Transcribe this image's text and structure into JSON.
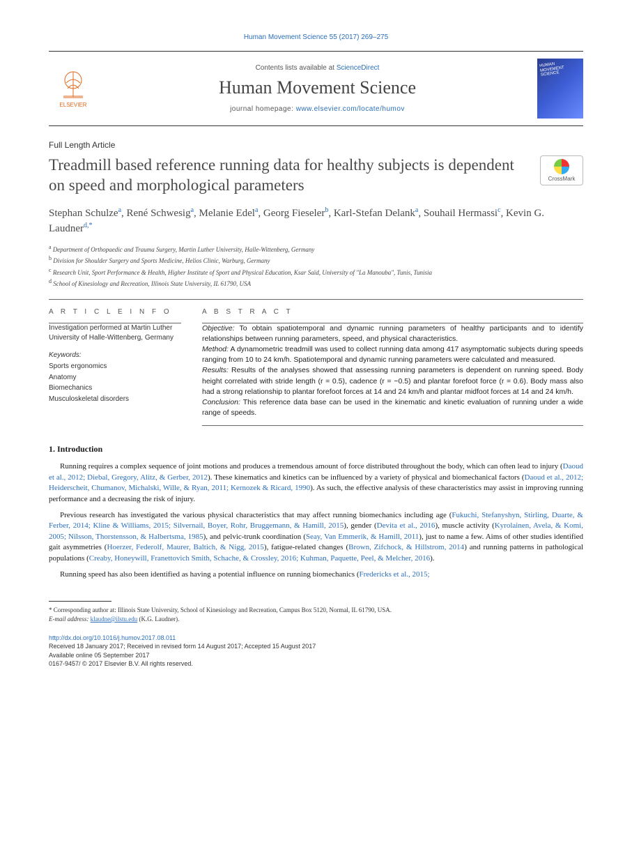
{
  "citation_header": "Human Movement Science 55 (2017) 269–275",
  "masthead": {
    "contents_prefix": "Contents lists available at ",
    "contents_link": "ScienceDirect",
    "journal_name": "Human Movement Science",
    "homepage_prefix": "journal homepage: ",
    "homepage_url": "www.elsevier.com/locate/humov",
    "publisher_logo_text": "ELSEVIER"
  },
  "article_type": "Full Length Article",
  "title": "Treadmill based reference running data for healthy subjects is dependent on speed and morphological parameters",
  "crossmark_label": "CrossMark",
  "authors_html": "Stephan Schulze<sup>a</sup>, René Schwesig<sup>a</sup>, Melanie Edel<sup>a</sup>, Georg Fieseler<sup>b</sup>, Karl-Stefan Delank<sup>a</sup>, Souhail Hermassi<sup>c</sup>, Kevin G. Laudner<sup>d,*</sup>",
  "affiliations": [
    "a Department of Orthopaedic and Trauma Surgery, Martin Luther University, Halle-Wittenberg, Germany",
    "b Division for Shoulder Surgery and Sports Medicine, Helios Clinic, Warburg, Germany",
    "c Research Unit, Sport Performance & Health, Higher Institute of Sport and Physical Education, Ksar Saïd, University of \"La Manouba\", Tunis, Tunisia",
    "d School of Kinesiology and Recreation, Illinois State University, IL 61790, USA"
  ],
  "info": {
    "heading": "A R T I C L E  I N F O",
    "institution_note": "Investigation performed at Martin Luther University of Halle-Wittenberg, Germany",
    "keywords_label": "Keywords:",
    "keywords": [
      "Sports ergonomics",
      "Anatomy",
      "Biomechanics",
      "Musculoskeletal disorders"
    ]
  },
  "abstract": {
    "heading": "A B S T R A C T",
    "segments": [
      {
        "label": "Objective:",
        "text": " To obtain spatiotemporal and dynamic running parameters of healthy participants and to identify relationships between running parameters, speed, and physical characteristics."
      },
      {
        "label": "Method:",
        "text": " A dynamometric treadmill was used to collect running data among 417 asymptomatic subjects during speeds ranging from 10 to 24 km/h. Spatiotemporal and dynamic running parameters were calculated and measured."
      },
      {
        "label": "Results:",
        "text": " Results of the analyses showed that assessing running parameters is dependent on running speed. Body height correlated with stride length (r = 0.5), cadence (r = −0.5) and plantar forefoot force (r = 0.6). Body mass also had a strong relationship to plantar forefoot forces at 14 and 24 km/h and plantar midfoot forces at 14 and 24 km/h."
      },
      {
        "label": "Conclusion:",
        "text": " This reference data base can be used in the kinematic and kinetic evaluation of running under a wide range of speeds."
      }
    ]
  },
  "section1": {
    "heading": "1. Introduction",
    "p1_a": "Running requires a complex sequence of joint motions and produces a tremendous amount of force distributed throughout the body, which can often lead to injury (",
    "p1_ref1": "Daoud et al., 2012; Diebal, Gregory, Alitz, & Gerber, 2012",
    "p1_b": "). These kinematics and kinetics can be influenced by a variety of physical and biomechanical factors (",
    "p1_ref2": "Daoud et al., 2012; Heiderscheit, Chumanov, Michalski, Wille, & Ryan, 2011; Kernozek & Ricard, 1990",
    "p1_c": "). As such, the effective analysis of these characteristics may assist in improving running performance and a decreasing the risk of injury.",
    "p2_a": "Previous research has investigated the various physical characteristics that may affect running biomechanics including age (",
    "p2_ref1": "Fukuchi, Stefanyshyn, Stirling, Duarte, & Ferber, 2014; Kline & Williams, 2015; Silvernail, Boyer, Rohr, Bruggemann, & Hamill, 2015",
    "p2_b": "), gender (",
    "p2_ref2": "Devita et al., 2016",
    "p2_c": "), muscle activity (",
    "p2_ref3": "Kyrolainen, Avela, & Komi, 2005; Nilsson, Thorstensson, & Halbertsma, 1985",
    "p2_d": "), and pelvic-trunk coordination (",
    "p2_ref4": "Seay, Van Emmerik, & Hamill, 2011",
    "p2_e": "), just to name a few. Aims of other studies identified gait asymmetries (",
    "p2_ref5": "Hoerzer, Federolf, Maurer, Baltich, & Nigg, 2015",
    "p2_f": "), fatigue-related changes (",
    "p2_ref6": "Brown, Zifchock, & Hillstrom, 2014",
    "p2_g": ") and running patterns in pathological populations (",
    "p2_ref7": "Creaby, Honeywill, Franettovich Smith, Schache, & Crossley, 2016; Kuhman, Paquette, Peel, & Melcher, 2016",
    "p2_h": ").",
    "p3_a": "Running speed has also been identified as having a potential influence on running biomechanics (",
    "p3_ref1": "Fredericks et al., 2015;"
  },
  "footnotes": {
    "corr": "* Corresponding author at: Illinois State University, School of Kinesiology and Recreation, Campus Box 5120, Normal, IL 61790, USA.",
    "email_label": "E-mail address: ",
    "email": "klaudne@ilstu.edu",
    "email_suffix": " (K.G. Laudner)."
  },
  "pub": {
    "doi": "http://dx.doi.org/10.1016/j.humov.2017.08.011",
    "history": "Received 18 January 2017; Received in revised form 14 August 2017; Accepted 15 August 2017",
    "online": "Available online 05 September 2017",
    "copyright": "0167-9457/ © 2017 Elsevier B.V. All rights reserved."
  },
  "colors": {
    "link": "#2a6ebb",
    "text": "#1a1a1a",
    "heading_gray": "#4a4a4a",
    "elsevier_orange": "#e06a1c"
  }
}
